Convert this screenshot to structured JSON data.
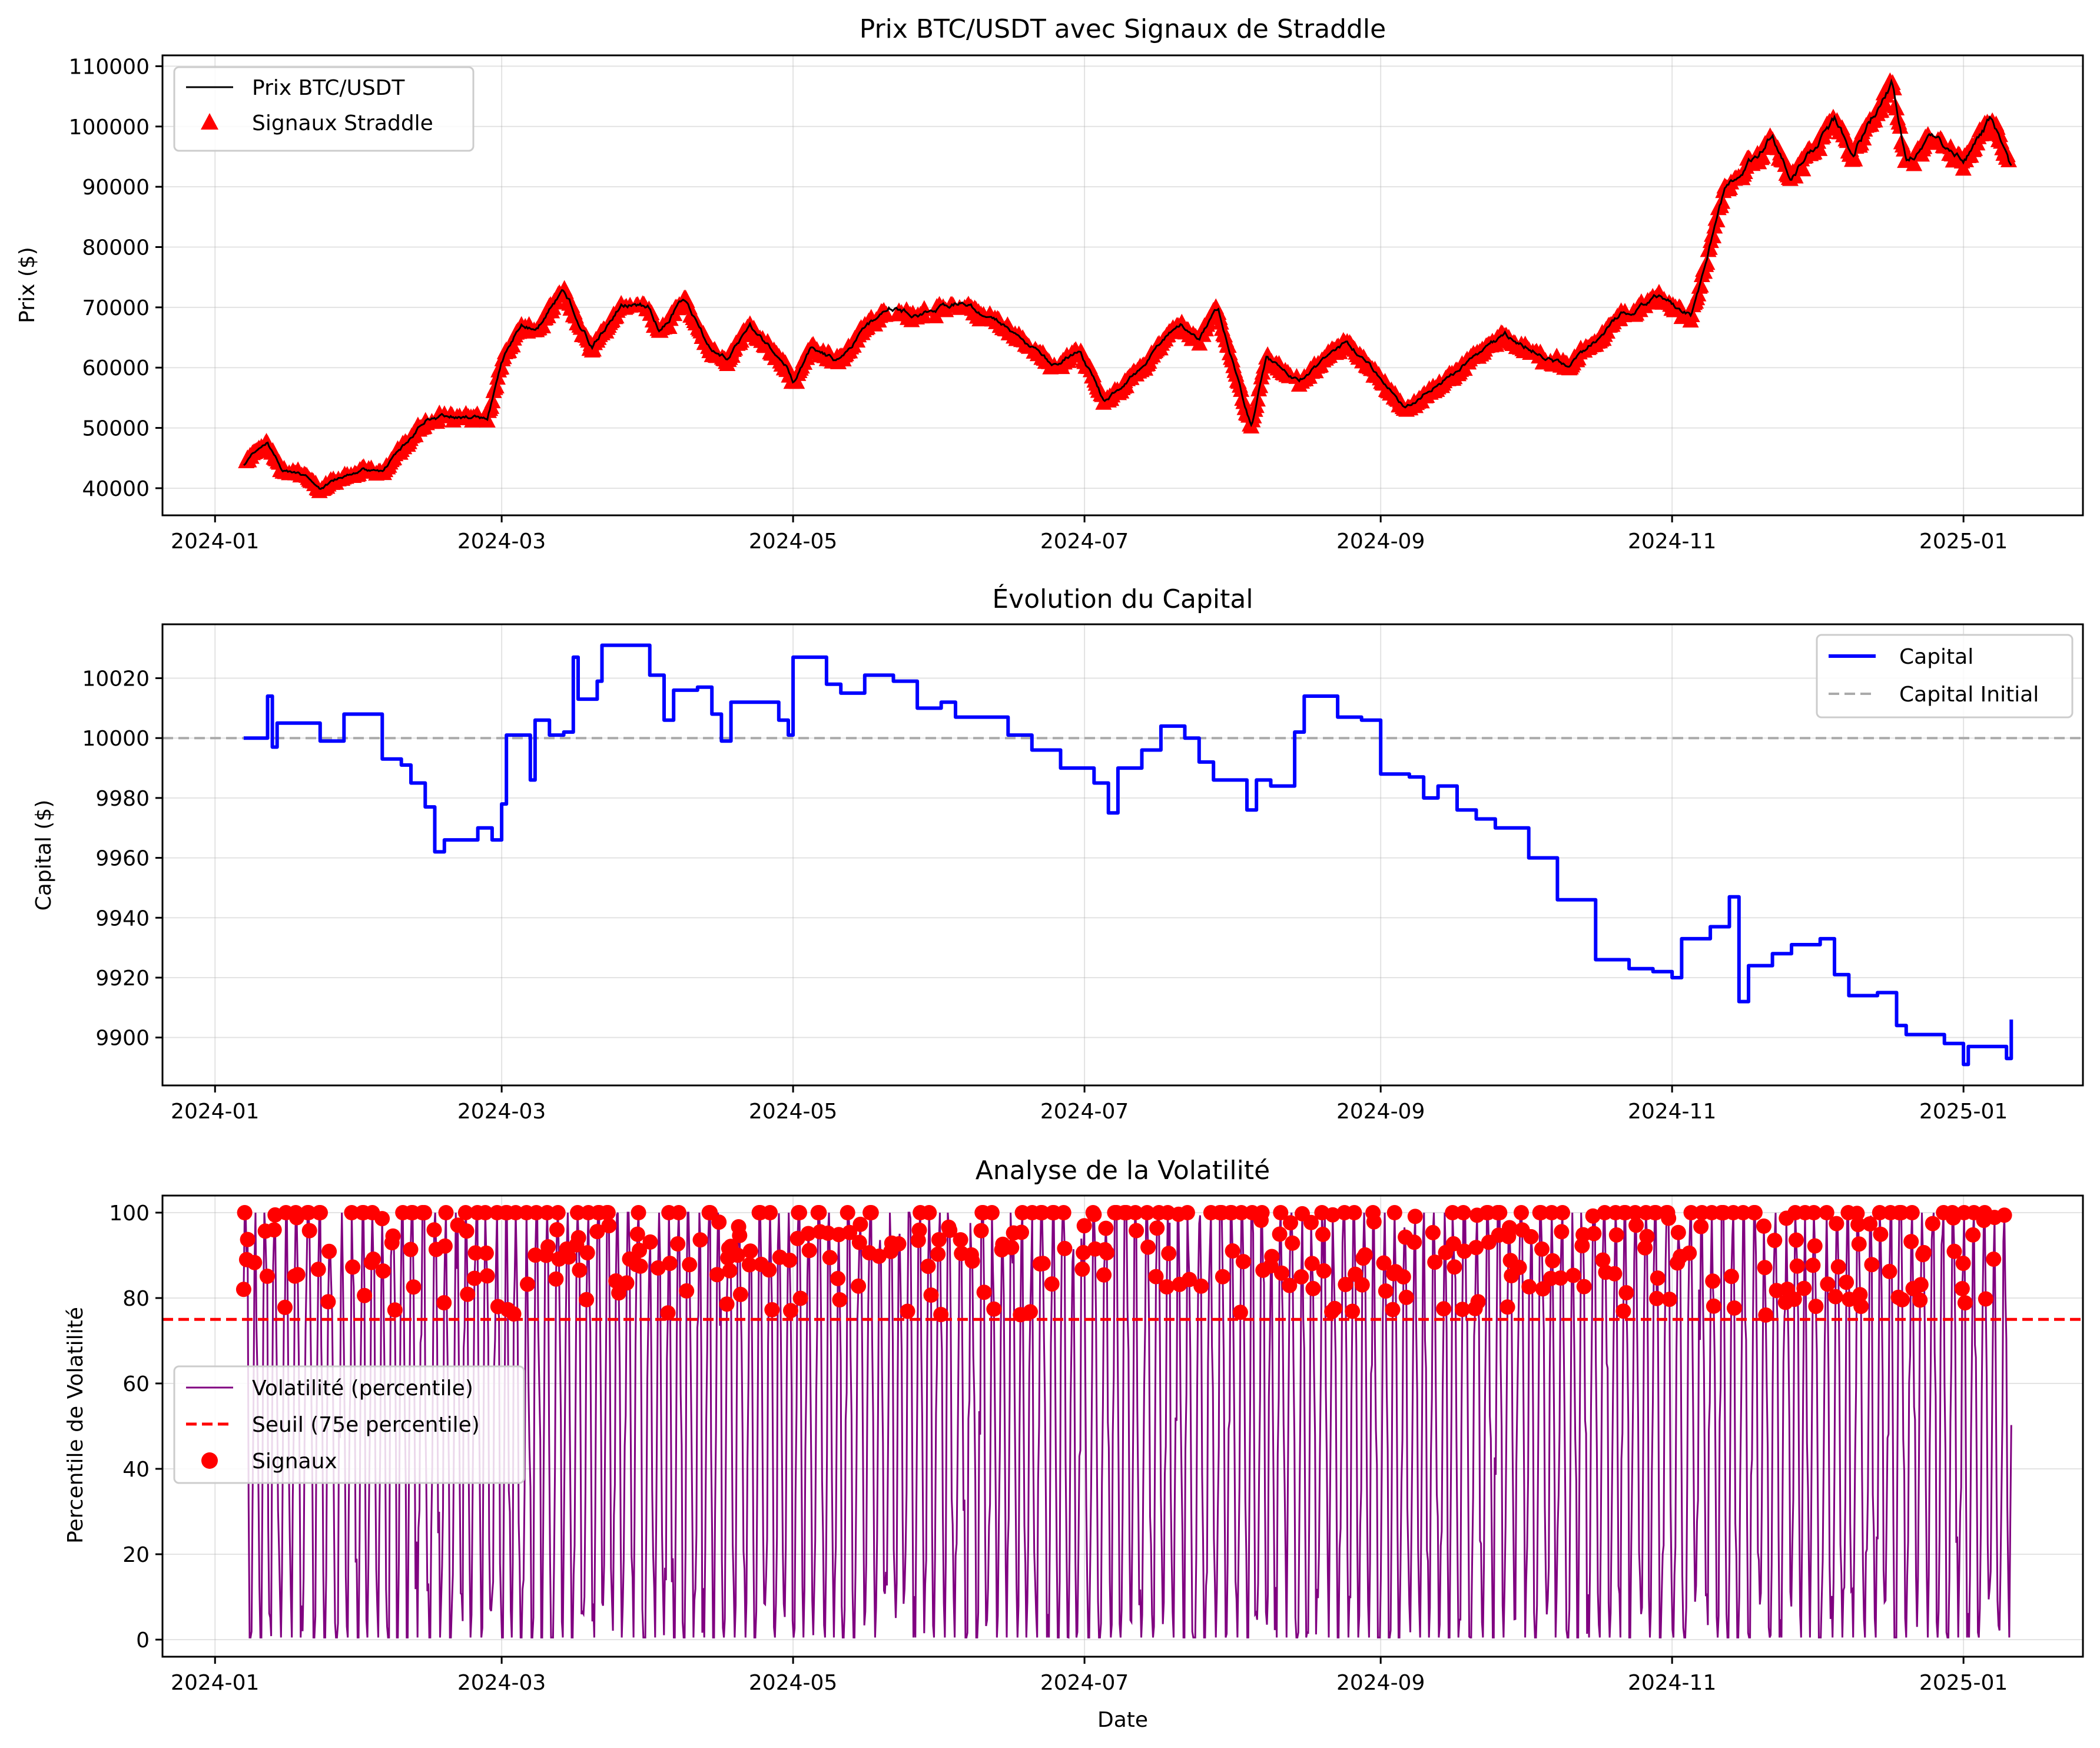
{
  "chart_data": [
    {
      "type": "line",
      "title": "Prix BTC/USDT avec Signaux de Straddle",
      "xlabel": "",
      "ylabel": "Prix ($)",
      "x_ticks": [
        "2024-01",
        "2024-03",
        "2024-05",
        "2024-07",
        "2024-09",
        "2024-11",
        "2025-01"
      ],
      "x_range": [
        "2023-12-21",
        "2025-01-26"
      ],
      "y_ticks": [
        40000,
        50000,
        60000,
        70000,
        80000,
        90000,
        100000,
        110000
      ],
      "ylim": [
        35500,
        111800
      ],
      "grid": true,
      "legend_position": "upper-left",
      "legend": [
        "Prix BTC/USDT",
        "Signaux Straddle"
      ],
      "series": [
        {
          "name": "Prix BTC/USDT",
          "color": "#000000",
          "points": [
            [
              "2024-01-07",
              43900
            ],
            [
              "2024-01-10",
              46500
            ],
            [
              "2024-01-12",
              47600
            ],
            [
              "2024-01-15",
              43100
            ],
            [
              "2024-01-20",
              42000
            ],
            [
              "2024-01-23",
              39700
            ],
            [
              "2024-01-26",
              41200
            ],
            [
              "2024-02-01",
              43000
            ],
            [
              "2024-02-05",
              42800
            ],
            [
              "2024-02-09",
              46500
            ],
            [
              "2024-02-14",
              51500
            ],
            [
              "2024-02-20",
              52000
            ],
            [
              "2024-02-27",
              51500
            ],
            [
              "2024-03-01",
              61000
            ],
            [
              "2024-03-05",
              67500
            ],
            [
              "2024-03-08",
              66000
            ],
            [
              "2024-03-14",
              73000
            ],
            [
              "2024-03-20",
              63500
            ],
            [
              "2024-03-26",
              70500
            ],
            [
              "2024-04-01",
              70000
            ],
            [
              "2024-04-03",
              66000
            ],
            [
              "2024-04-08",
              71500
            ],
            [
              "2024-04-13",
              64000
            ],
            [
              "2024-04-17",
              61500
            ],
            [
              "2024-04-22",
              66500
            ],
            [
              "2024-04-30",
              60000
            ],
            [
              "2024-05-01",
              57500
            ],
            [
              "2024-05-05",
              63500
            ],
            [
              "2024-05-10",
              61000
            ],
            [
              "2024-05-15",
              65500
            ],
            [
              "2024-05-21",
              70500
            ],
            [
              "2024-05-27",
              68500
            ],
            [
              "2024-06-05",
              71000
            ],
            [
              "2024-06-15",
              66500
            ],
            [
              "2024-06-24",
              60500
            ],
            [
              "2024-06-30",
              63000
            ],
            [
              "2024-07-05",
              54500
            ],
            [
              "2024-07-10",
              57500
            ],
            [
              "2024-07-21",
              67500
            ],
            [
              "2024-07-25",
              65000
            ],
            [
              "2024-07-29",
              69500
            ],
            [
              "2024-08-05",
              50000
            ],
            [
              "2024-08-08",
              61500
            ],
            [
              "2024-08-15",
              58000
            ],
            [
              "2024-08-25",
              64500
            ],
            [
              "2024-09-06",
              53500
            ],
            [
              "2024-09-15",
              58500
            ],
            [
              "2024-09-27",
              65500
            ],
            [
              "2024-10-10",
              60000
            ],
            [
              "2024-10-21",
              68500
            ],
            [
              "2024-10-29",
              72000
            ],
            [
              "2024-11-05",
              68500
            ],
            [
              "2024-11-12",
              89000
            ],
            [
              "2024-11-22",
              98500
            ],
            [
              "2024-11-26",
              92000
            ],
            [
              "2024-12-05",
              101000
            ],
            [
              "2024-12-09",
              96000
            ],
            [
              "2024-12-17",
              107000
            ],
            [
              "2024-12-20",
              94500
            ],
            [
              "2024-12-26",
              98500
            ],
            [
              "2025-01-01",
              94000
            ],
            [
              "2025-01-07",
              101500
            ],
            [
              "2025-01-11",
              92500
            ]
          ]
        },
        {
          "name": "Signaux Straddle",
          "color": "#ff0000",
          "marker": "triangle"
        }
      ]
    },
    {
      "type": "line",
      "title": "Évolution du Capital",
      "xlabel": "",
      "ylabel": "Capital ($)",
      "x_ticks": [
        "2024-01",
        "2024-03",
        "2024-05",
        "2024-07",
        "2024-09",
        "2024-11",
        "2025-01"
      ],
      "x_range": [
        "2023-12-21",
        "2025-01-26"
      ],
      "y_ticks": [
        9900,
        9920,
        9940,
        9960,
        9980,
        10000,
        10020
      ],
      "ylim": [
        9884,
        10038
      ],
      "grid": true,
      "legend_position": "upper-right",
      "legend": [
        "Capital",
        "Capital Initial"
      ],
      "series": [
        {
          "name": "Capital",
          "color": "#0000ff",
          "points": [
            [
              "2024-01-07",
              10000
            ],
            [
              "2024-01-11",
              10000
            ],
            [
              "2024-01-12",
              10014
            ],
            [
              "2024-01-13",
              9997
            ],
            [
              "2024-01-14",
              10005
            ],
            [
              "2024-01-22",
              10005
            ],
            [
              "2024-01-23",
              9999
            ],
            [
              "2024-01-27",
              9999
            ],
            [
              "2024-01-28",
              10008
            ],
            [
              "2024-02-02",
              10008
            ],
            [
              "2024-02-05",
              9993
            ],
            [
              "2024-02-09",
              9991
            ],
            [
              "2024-02-11",
              9985
            ],
            [
              "2024-02-14",
              9977
            ],
            [
              "2024-02-16",
              9962
            ],
            [
              "2024-02-18",
              9966
            ],
            [
              "2024-02-24",
              9966
            ],
            [
              "2024-02-25",
              9970
            ],
            [
              "2024-02-28",
              9966
            ],
            [
              "2024-03-01",
              9978
            ],
            [
              "2024-03-02",
              10001
            ],
            [
              "2024-03-06",
              10001
            ],
            [
              "2024-03-07",
              9986
            ],
            [
              "2024-03-08",
              10006
            ],
            [
              "2024-03-11",
              10001
            ],
            [
              "2024-03-14",
              10002
            ],
            [
              "2024-03-16",
              10027
            ],
            [
              "2024-03-17",
              10013
            ],
            [
              "2024-03-21",
              10019
            ],
            [
              "2024-03-22",
              10031
            ],
            [
              "2024-03-27",
              10031
            ],
            [
              "2024-04-01",
              10021
            ],
            [
              "2024-04-04",
              10006
            ],
            [
              "2024-04-06",
              10016
            ],
            [
              "2024-04-11",
              10017
            ],
            [
              "2024-04-14",
              10008
            ],
            [
              "2024-04-16",
              9999
            ],
            [
              "2024-04-18",
              10012
            ],
            [
              "2024-04-25",
              10012
            ],
            [
              "2024-04-28",
              10006
            ],
            [
              "2024-04-30",
              10001
            ],
            [
              "2024-05-01",
              10027
            ],
            [
              "2024-05-06",
              10027
            ],
            [
              "2024-05-08",
              10018
            ],
            [
              "2024-05-11",
              10015
            ],
            [
              "2024-05-16",
              10021
            ],
            [
              "2024-05-22",
              10019
            ],
            [
              "2024-05-27",
              10010
            ],
            [
              "2024-06-01",
              10012
            ],
            [
              "2024-06-04",
              10007
            ],
            [
              "2024-06-10",
              10007
            ],
            [
              "2024-06-15",
              10001
            ],
            [
              "2024-06-20",
              9996
            ],
            [
              "2024-06-26",
              9990
            ],
            [
              "2024-06-30",
              9990
            ],
            [
              "2024-07-03",
              9985
            ],
            [
              "2024-07-06",
              9975
            ],
            [
              "2024-07-08",
              9990
            ],
            [
              "2024-07-13",
              9996
            ],
            [
              "2024-07-17",
              10004
            ],
            [
              "2024-07-22",
              10000
            ],
            [
              "2024-07-25",
              9992
            ],
            [
              "2024-07-28",
              9986
            ],
            [
              "2024-08-01",
              9986
            ],
            [
              "2024-08-04",
              9976
            ],
            [
              "2024-08-06",
              9986
            ],
            [
              "2024-08-09",
              9984
            ],
            [
              "2024-08-13",
              9984
            ],
            [
              "2024-08-14",
              10002
            ],
            [
              "2024-08-16",
              10014
            ],
            [
              "2024-08-21",
              10014
            ],
            [
              "2024-08-23",
              10007
            ],
            [
              "2024-08-28",
              10006
            ],
            [
              "2024-09-01",
              9988
            ],
            [
              "2024-09-07",
              9987
            ],
            [
              "2024-09-10",
              9980
            ],
            [
              "2024-09-13",
              9984
            ],
            [
              "2024-09-17",
              9976
            ],
            [
              "2024-09-21",
              9973
            ],
            [
              "2024-09-25",
              9970
            ],
            [
              "2024-09-30",
              9970
            ],
            [
              "2024-10-02",
              9960
            ],
            [
              "2024-10-06",
              9960
            ],
            [
              "2024-10-08",
              9946
            ],
            [
              "2024-10-15",
              9946
            ],
            [
              "2024-10-16",
              9926
            ],
            [
              "2024-10-21",
              9926
            ],
            [
              "2024-10-23",
              9923
            ],
            [
              "2024-10-28",
              9922
            ],
            [
              "2024-11-01",
              9920
            ],
            [
              "2024-11-03",
              9933
            ],
            [
              "2024-11-07",
              9933
            ],
            [
              "2024-11-09",
              9937
            ],
            [
              "2024-11-13",
              9947
            ],
            [
              "2024-11-15",
              9912
            ],
            [
              "2024-11-17",
              9924
            ],
            [
              "2024-11-22",
              9928
            ],
            [
              "2024-11-26",
              9931
            ],
            [
              "2024-12-02",
              9933
            ],
            [
              "2024-12-05",
              9921
            ],
            [
              "2024-12-08",
              9914
            ],
            [
              "2024-12-14",
              9915
            ],
            [
              "2024-12-18",
              9904
            ],
            [
              "2024-12-20",
              9901
            ],
            [
              "2024-12-28",
              9898
            ],
            [
              "2025-01-01",
              9891
            ],
            [
              "2025-01-02",
              9897
            ],
            [
              "2025-01-07",
              9897
            ],
            [
              "2025-01-10",
              9893
            ],
            [
              "2025-01-11",
              9906
            ]
          ]
        },
        {
          "name": "Capital Initial",
          "color": "#aaaaaa",
          "dashed": true,
          "value": 10000
        }
      ]
    },
    {
      "type": "line",
      "title": "Analyse de la Volatilité",
      "xlabel": "Date",
      "ylabel": "Percentile de Volatilité",
      "x_ticks": [
        "2024-01",
        "2024-03",
        "2024-05",
        "2024-07",
        "2024-09",
        "2024-11",
        "2025-01"
      ],
      "x_range": [
        "2023-12-21",
        "2025-01-26"
      ],
      "y_ticks": [
        0,
        20,
        40,
        60,
        80,
        100
      ],
      "ylim": [
        -4,
        104
      ],
      "grid": true,
      "legend_position": "center-left",
      "legend": [
        "Volatilité (percentile)",
        "Seuil (75e percentile)",
        "Signaux"
      ],
      "series": [
        {
          "name": "Volatilité (percentile)",
          "color": "#800080",
          "note": "oscillation dense entre 0 et 100, mise à jour horaire"
        },
        {
          "name": "Seuil (75e percentile)",
          "color": "#ff0000",
          "dashed": true,
          "value": 75
        },
        {
          "name": "Signaux",
          "color": "#ff0000",
          "marker": "circle",
          "y_range": [
            75,
            100
          ]
        }
      ]
    }
  ]
}
